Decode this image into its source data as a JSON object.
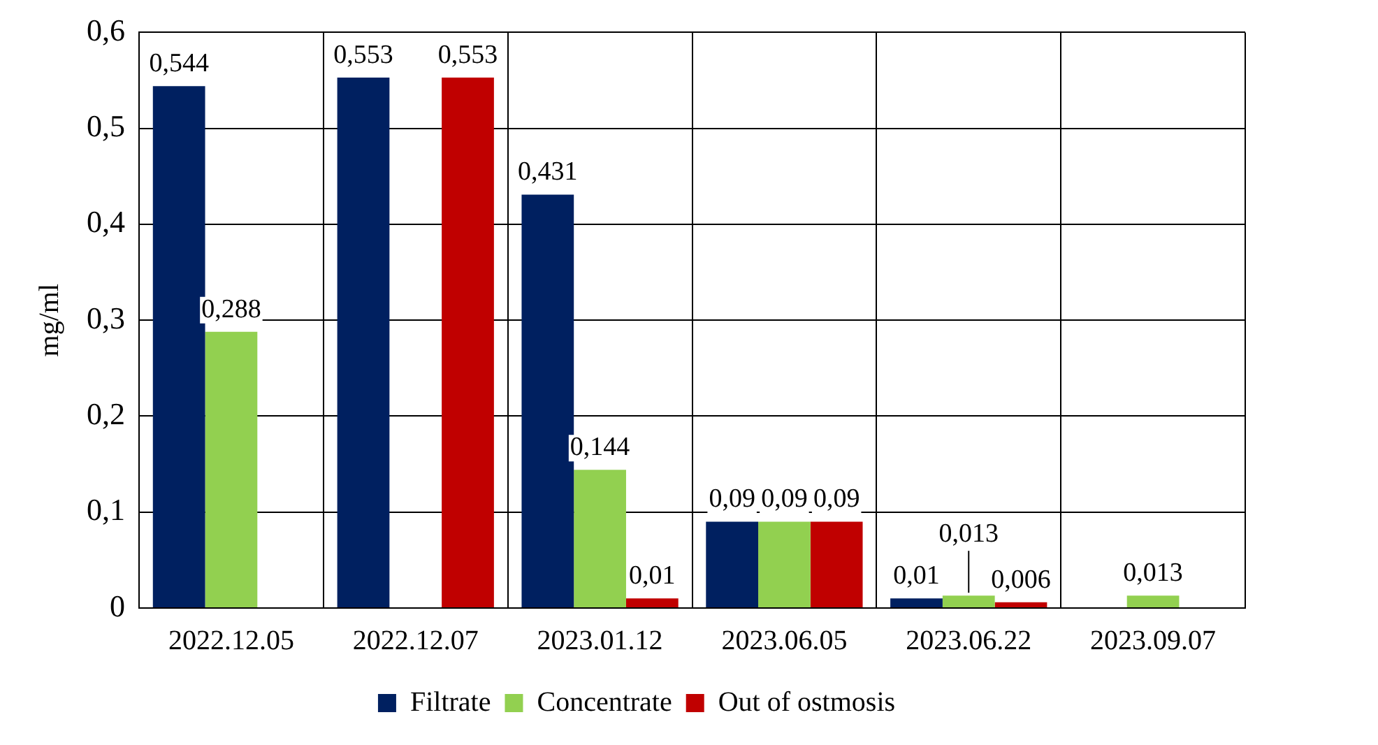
{
  "chart_data": {
    "type": "bar",
    "ylabel": "mg/ml",
    "categories": [
      "2022.12.05",
      "2022.12.07",
      "2023.01.12",
      "2023.06.05",
      "2023.06.22",
      "2023.09.07"
    ],
    "series": [
      {
        "name": "Filtrate",
        "color": "#002060",
        "values": [
          0.544,
          0.553,
          0.431,
          0.09,
          0.01,
          null
        ],
        "value_labels": [
          "0,544",
          "0,553",
          "0,431",
          "0,09",
          "0,01",
          null
        ]
      },
      {
        "name": "Concentrate",
        "color": "#92d050",
        "values": [
          0.288,
          null,
          0.144,
          0.09,
          0.013,
          0.013
        ],
        "value_labels": [
          "0,288",
          null,
          "0,144",
          "0,09",
          "0,013",
          "0,013"
        ]
      },
      {
        "name": "Out of ostmosis",
        "color": "#c00000",
        "values": [
          null,
          0.553,
          0.01,
          0.09,
          0.006,
          null
        ],
        "value_labels": [
          null,
          "0,553",
          "0,01",
          "0,09",
          "0,006",
          null
        ]
      }
    ],
    "ylim": [
      0,
      0.6
    ],
    "yticks": [
      {
        "value": 0,
        "label": "0"
      },
      {
        "value": 0.1,
        "label": "0,1"
      },
      {
        "value": 0.2,
        "label": "0,2"
      },
      {
        "value": 0.3,
        "label": "0,3"
      },
      {
        "value": 0.4,
        "label": "0,4"
      },
      {
        "value": 0.5,
        "label": "0,5"
      },
      {
        "value": 0.6,
        "label": "0,6"
      }
    ],
    "grid": true,
    "legend": "bottom"
  }
}
